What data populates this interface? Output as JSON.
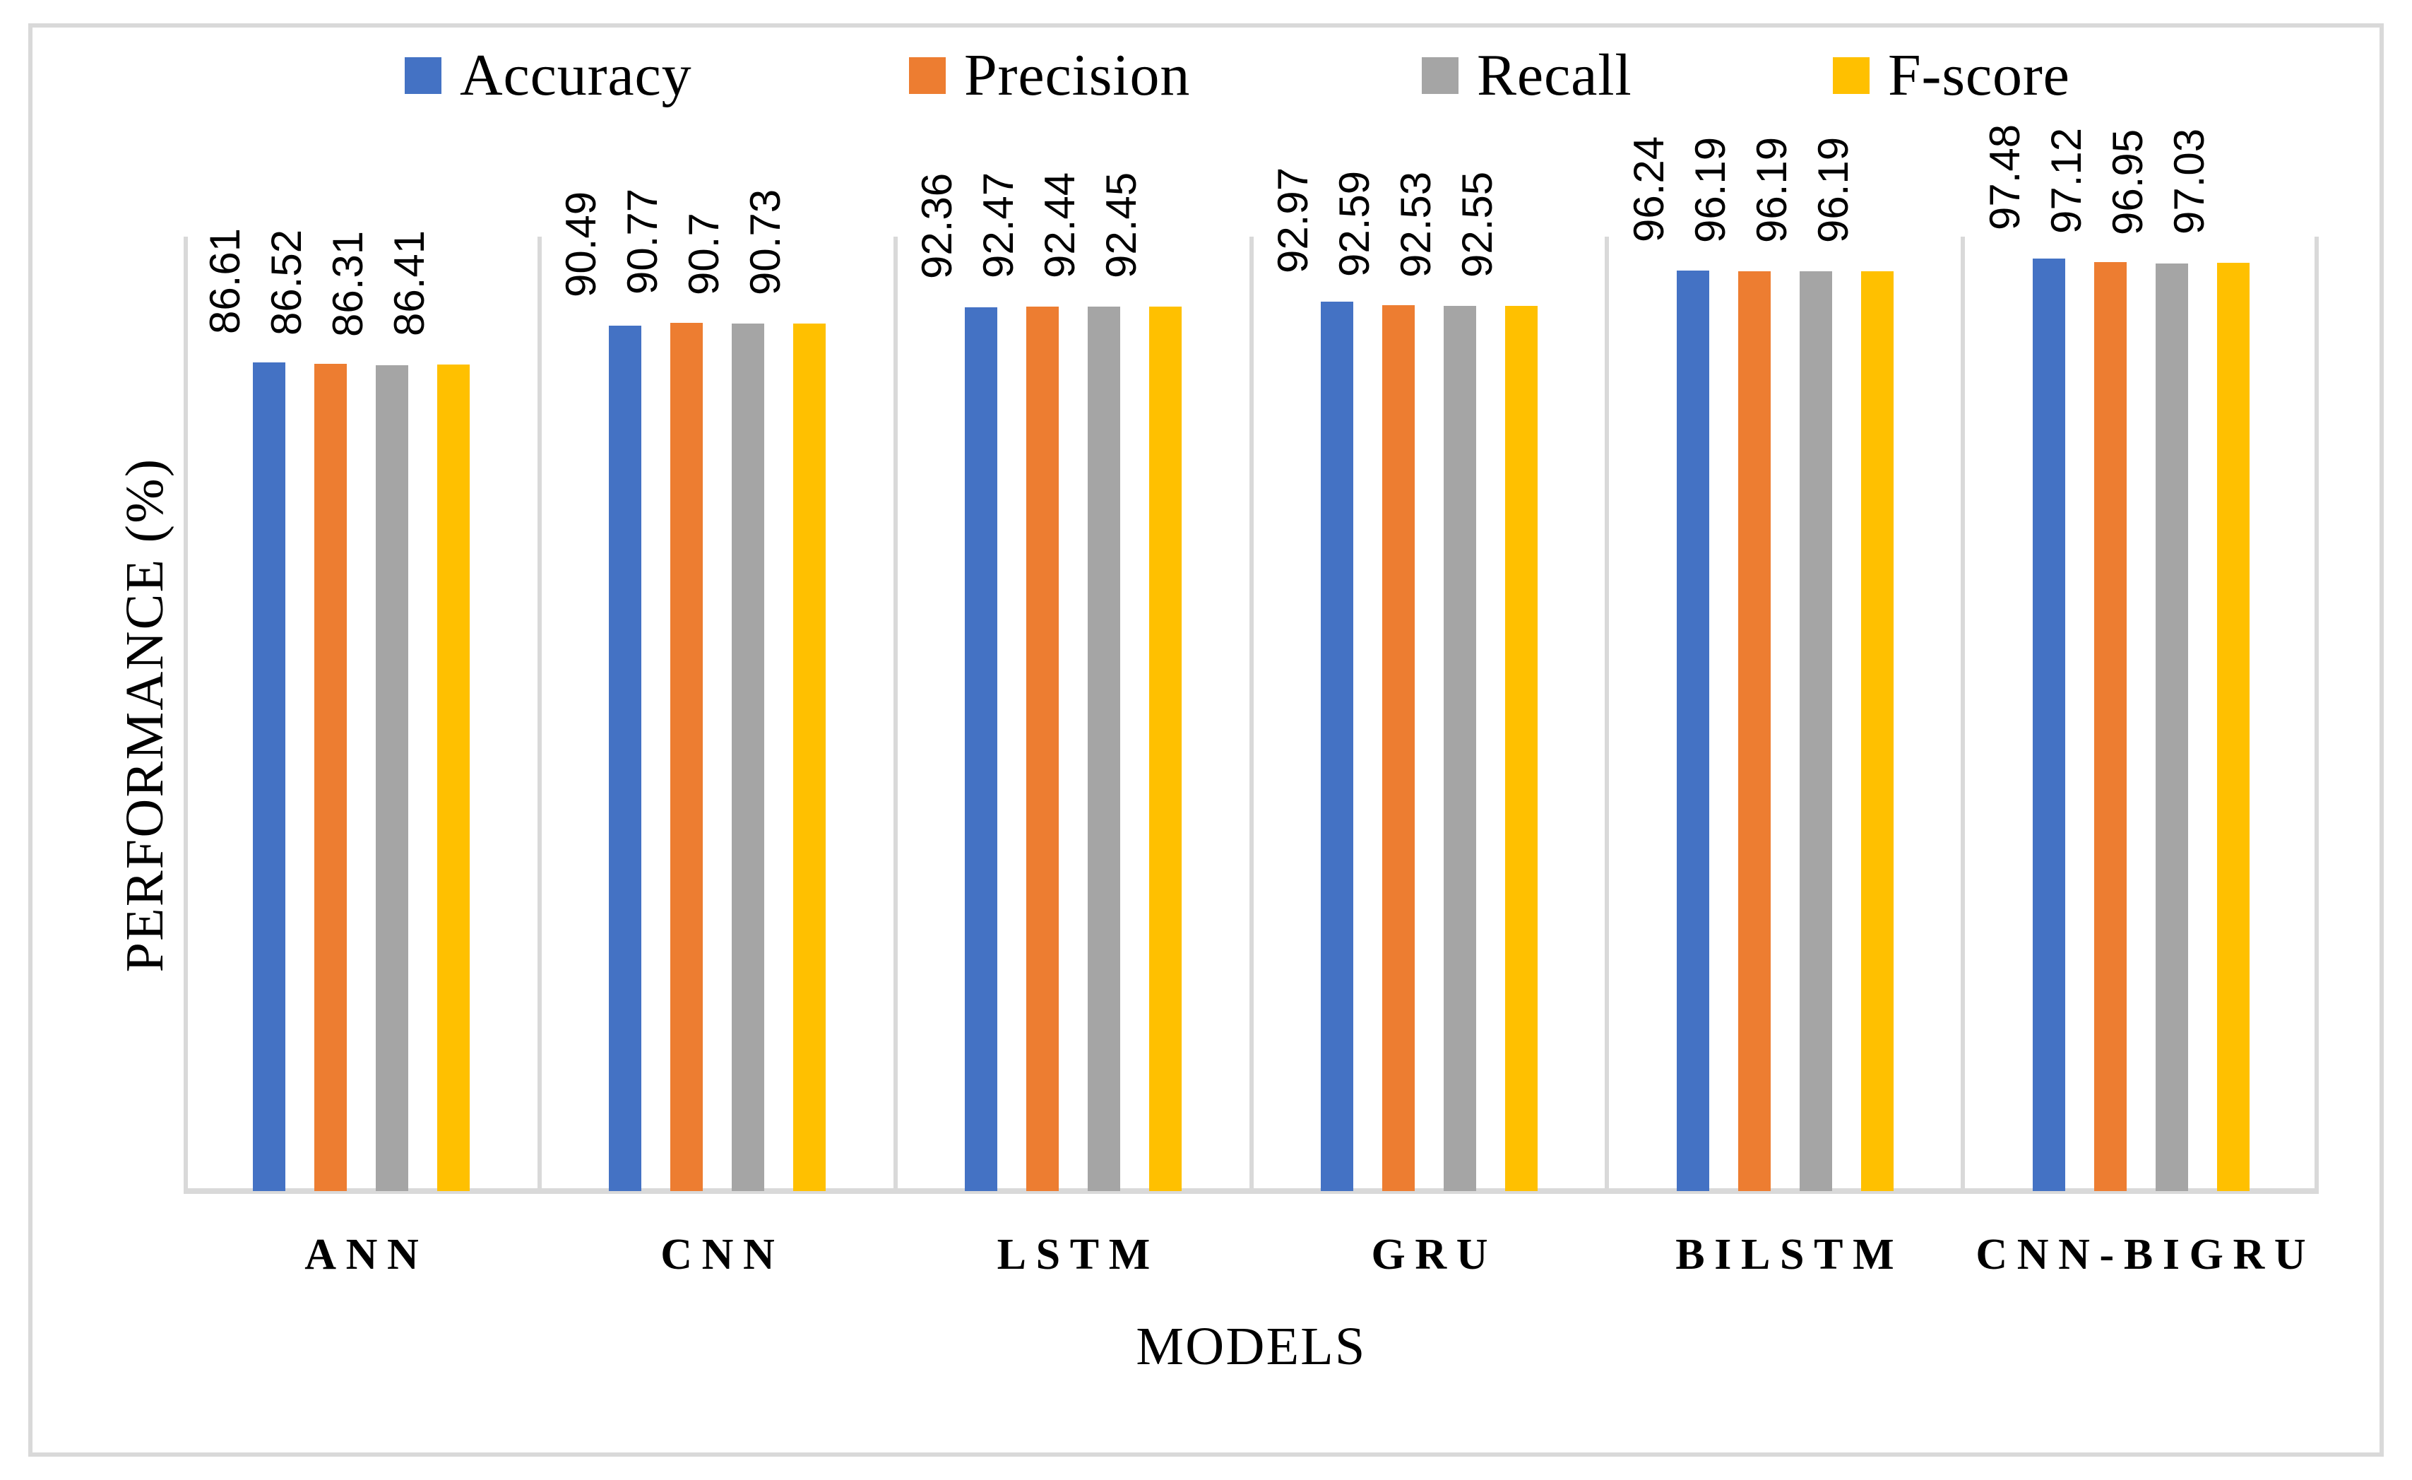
{
  "chart_data": {
    "type": "bar",
    "title": "",
    "xlabel": "MODELS",
    "ylabel": "PERFORMANCE (%)",
    "ylim": [
      0,
      100
    ],
    "grid": "vertical category separators only, no horizontal gridlines, no y tick labels",
    "legend_position": "top",
    "gridline_color": "#D9D9D9",
    "frame_color": "#D9D9D9",
    "label_color": "#000000",
    "categories": [
      "ANN",
      "CNN",
      "LSTM",
      "GRU",
      "BILSTM",
      "CNN-BIGRU"
    ],
    "series": [
      {
        "name": "Accuracy",
        "color": "#4472C4",
        "values": [
          86.61,
          90.49,
          92.36,
          92.97,
          96.24,
          97.48
        ],
        "labels": [
          "86.61",
          "90.49",
          "92.36",
          "92.97",
          "96.24",
          "97.48"
        ]
      },
      {
        "name": "Precision",
        "color": "#ED7D31",
        "values": [
          86.52,
          90.77,
          92.47,
          92.59,
          96.19,
          97.12
        ],
        "labels": [
          "86.52",
          "90.77",
          "92.47",
          "92.59",
          "96.19",
          "97.12"
        ]
      },
      {
        "name": "Recall",
        "color": "#A5A5A5",
        "values": [
          86.31,
          90.7,
          92.44,
          92.53,
          96.19,
          96.95
        ],
        "labels": [
          "86.31",
          "90.7",
          "92.44",
          "92.53",
          "96.19",
          "96.95"
        ]
      },
      {
        "name": "F-score",
        "color": "#FFC000",
        "values": [
          86.41,
          90.73,
          92.45,
          92.55,
          96.19,
          97.03
        ],
        "labels": [
          "86.41",
          "90.73",
          "92.45",
          "92.55",
          "96.19",
          "97.03"
        ]
      }
    ]
  }
}
